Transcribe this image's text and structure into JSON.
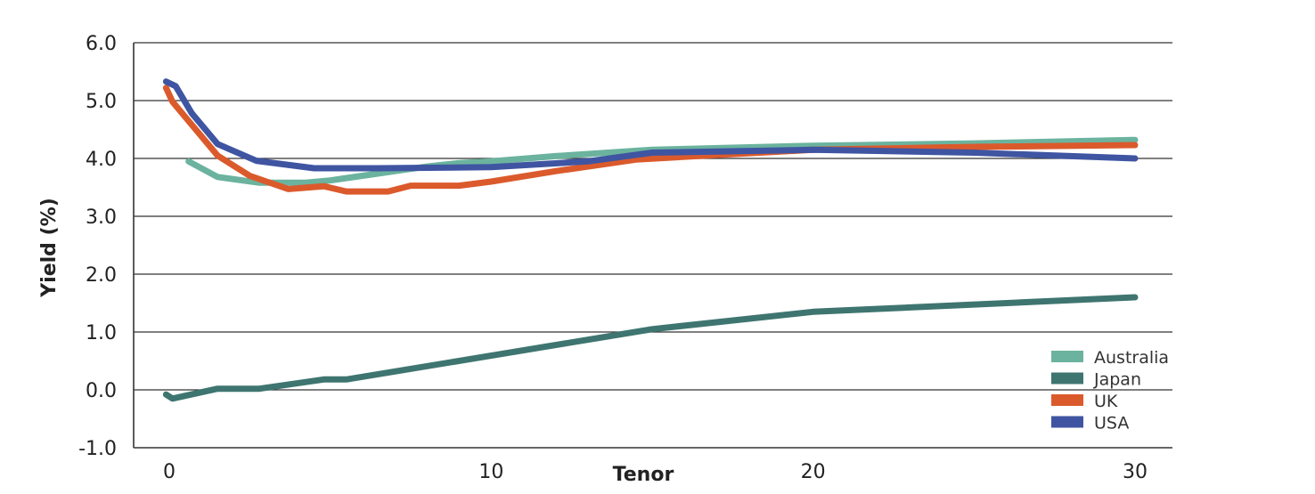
{
  "chart_data": {
    "type": "line",
    "title": "",
    "xlabel": "Tenor",
    "ylabel": "Yield (%)",
    "xlim": [
      0,
      30
    ],
    "ylim": [
      -1.0,
      6.0
    ],
    "x_ticks": [
      0,
      10,
      20,
      30
    ],
    "x_tick_labels": [
      "0",
      "10",
      "20",
      "30"
    ],
    "y_ticks": [
      -1.0,
      0.0,
      1.0,
      2.0,
      3.0,
      4.0,
      5.0,
      6.0
    ],
    "y_tick_labels": [
      "-1.0",
      "0.0",
      "1.0",
      "2.0",
      "3.0",
      "4.0",
      "5.0",
      "6.0"
    ],
    "grid": true,
    "legend_position": "bottom-right",
    "series": [
      {
        "name": "Australia",
        "color": "#6bb39e",
        "x": [
          0.6,
          1.5,
          2.8,
          4.2,
          5,
          6,
          7,
          8,
          9,
          10,
          12,
          15,
          20,
          25,
          30
        ],
        "y": [
          3.95,
          3.68,
          3.58,
          3.58,
          3.62,
          3.7,
          3.78,
          3.86,
          3.92,
          3.95,
          4.04,
          4.15,
          4.22,
          4.26,
          4.32
        ]
      },
      {
        "name": "Japan",
        "color": "#3f7570",
        "x": [
          -0.1,
          0.1,
          1.5,
          2.8,
          4.8,
          5.5,
          15,
          20,
          30
        ],
        "y": [
          -0.08,
          -0.15,
          0.02,
          0.02,
          0.18,
          0.18,
          1.05,
          1.35,
          1.6
        ]
      },
      {
        "name": "UK",
        "color": "#db5a2c",
        "x": [
          -0.1,
          0.1,
          1.5,
          2.5,
          3.7,
          4.8,
          5.5,
          6.8,
          7.5,
          9,
          10,
          12,
          14.5,
          17,
          20,
          25,
          30
        ],
        "y": [
          5.22,
          4.98,
          4.05,
          3.7,
          3.47,
          3.52,
          3.43,
          3.43,
          3.53,
          3.53,
          3.6,
          3.78,
          3.98,
          4.06,
          4.15,
          4.2,
          4.23
        ]
      },
      {
        "name": "USA",
        "color": "#3f55a2",
        "x": [
          -0.1,
          0.2,
          0.7,
          1.5,
          2.7,
          4.5,
          6.5,
          10,
          13,
          15,
          20,
          25,
          30
        ],
        "y": [
          5.33,
          5.25,
          4.78,
          4.25,
          3.96,
          3.83,
          3.83,
          3.85,
          3.95,
          4.1,
          4.15,
          4.1,
          4.0
        ]
      }
    ]
  }
}
